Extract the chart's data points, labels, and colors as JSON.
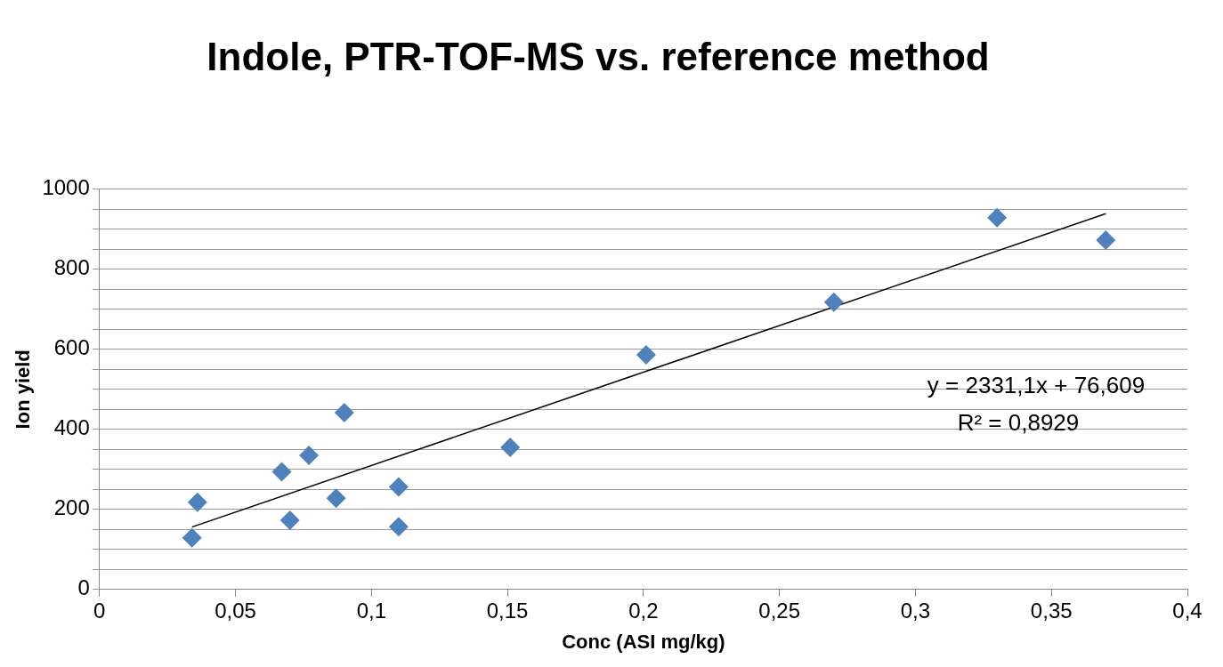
{
  "chart_data": {
    "type": "scatter",
    "title": "Indole, PTR-TOF-MS vs. reference method",
    "xlabel": "Conc (ASI mg/kg)",
    "ylabel": "Ion yield",
    "series": [
      {
        "color": "#4f81bd",
        "marker": "diamond",
        "x": [
          0.034,
          0.036,
          0.067,
          0.07,
          0.077,
          0.087,
          0.09,
          0.11,
          0.11,
          0.151,
          0.201,
          0.27,
          0.33,
          0.37
        ],
        "values": [
          129,
          218,
          294,
          173,
          335,
          228,
          442,
          256,
          157,
          355,
          586,
          718,
          929,
          873
        ]
      },
      {
        "type": "line",
        "color": "#000000",
        "marker": "none",
        "line_style": "solid",
        "x": [
          0.034,
          0.37
        ],
        "values": [
          156,
          939
        ]
      }
    ],
    "xlim": [
      0,
      0.4
    ],
    "xticks": [
      0,
      {
        "value": 0.05,
        "label": "0,05"
      },
      {
        "value": 0.1,
        "label": "0,1"
      },
      {
        "value": 0.15,
        "label": "0,15"
      },
      {
        "value": 0.2,
        "label": "0,2"
      },
      {
        "value": 0.25,
        "label": "0,25"
      },
      {
        "value": 0.3,
        "label": "0,3"
      },
      {
        "value": 0.35,
        "label": "0,35"
      },
      {
        "value": 0.4,
        "label": "0,4"
      }
    ],
    "ylim": [
      0,
      1000
    ],
    "yticks": [
      0,
      {
        "value": 50,
        "label": null
      },
      {
        "value": 100,
        "label": null
      },
      {
        "value": 150,
        "label": null
      },
      200,
      {
        "value": 250,
        "label": null
      },
      {
        "value": 300,
        "label": null
      },
      {
        "value": 350,
        "label": null
      },
      400,
      {
        "value": 450,
        "label": null
      },
      {
        "value": 500,
        "label": null
      },
      {
        "value": 550,
        "label": null
      },
      600,
      {
        "value": 650,
        "label": null
      },
      {
        "value": 700,
        "label": null
      },
      {
        "value": 750,
        "label": null
      },
      800,
      {
        "value": 850,
        "label": null
      },
      {
        "value": 900,
        "label": null
      },
      {
        "value": 950,
        "label": null
      },
      1000
    ],
    "grid": "y",
    "legend": false,
    "annotations": [
      "y = 2331,1x + 76,609",
      "R² = 0,8929"
    ]
  }
}
